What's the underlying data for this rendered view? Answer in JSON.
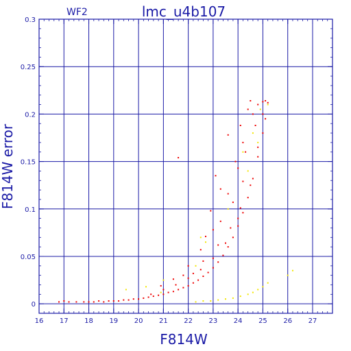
{
  "chart_data": {
    "type": "scatter",
    "title": "lmc_u4b107",
    "subtitle": "WF2",
    "xlabel": "F814W",
    "ylabel": "F814W error",
    "xlim": [
      16,
      27.8
    ],
    "ylim": [
      -0.01,
      0.3
    ],
    "x_ticks": [
      16,
      17,
      18,
      19,
      20,
      21,
      22,
      23,
      24,
      25,
      26,
      27
    ],
    "y_ticks": [
      0,
      0.05,
      0.1,
      0.15,
      0.2,
      0.25,
      0.3
    ],
    "y_tick_labels": [
      "0",
      "0.05",
      "0.1",
      "0.15",
      "0.2",
      "0.25",
      "0.3"
    ],
    "grid": true,
    "colors": {
      "axes": "#1a1aa6",
      "grid": "#1a1aa6",
      "series_main": "#ee0000",
      "series_secondary": "#f2e600"
    },
    "series": [
      {
        "color": "#ee0000",
        "points": [
          [
            16.8,
            0.002
          ],
          [
            17.0,
            0.003
          ],
          [
            17.2,
            0.002
          ],
          [
            17.5,
            0.002
          ],
          [
            17.8,
            0.002
          ],
          [
            18.0,
            0.002
          ],
          [
            18.2,
            0.002
          ],
          [
            18.4,
            0.003
          ],
          [
            18.6,
            0.002
          ],
          [
            18.8,
            0.003
          ],
          [
            19.0,
            0.003
          ],
          [
            19.2,
            0.003
          ],
          [
            19.4,
            0.004
          ],
          [
            19.6,
            0.004
          ],
          [
            19.8,
            0.005
          ],
          [
            20.0,
            0.005
          ],
          [
            20.2,
            0.006
          ],
          [
            20.4,
            0.007
          ],
          [
            20.6,
            0.008
          ],
          [
            20.8,
            0.009
          ],
          [
            21.0,
            0.01
          ],
          [
            21.2,
            0.012
          ],
          [
            21.4,
            0.013
          ],
          [
            21.6,
            0.015
          ],
          [
            21.8,
            0.017
          ],
          [
            22.0,
            0.019
          ],
          [
            22.2,
            0.022
          ],
          [
            22.4,
            0.025
          ],
          [
            22.6,
            0.029
          ],
          [
            22.8,
            0.033
          ],
          [
            23.0,
            0.038
          ],
          [
            23.2,
            0.044
          ],
          [
            23.4,
            0.051
          ],
          [
            23.6,
            0.06
          ],
          [
            23.8,
            0.07
          ],
          [
            24.0,
            0.082
          ],
          [
            24.2,
            0.096
          ],
          [
            24.4,
            0.112
          ],
          [
            24.6,
            0.132
          ],
          [
            24.8,
            0.155
          ],
          [
            25.0,
            0.18
          ],
          [
            25.1,
            0.195
          ],
          [
            25.2,
            0.212
          ],
          [
            20.5,
            0.01
          ],
          [
            21.0,
            0.015
          ],
          [
            21.5,
            0.02
          ],
          [
            22.0,
            0.027
          ],
          [
            22.5,
            0.036
          ],
          [
            23.0,
            0.048
          ],
          [
            23.5,
            0.064
          ],
          [
            24.0,
            0.09
          ],
          [
            24.5,
            0.125
          ],
          [
            24.8,
            0.165
          ],
          [
            25.0,
            0.2
          ],
          [
            25.1,
            0.214
          ],
          [
            21.6,
            0.154
          ],
          [
            22.2,
            0.032
          ],
          [
            23.1,
            0.135
          ],
          [
            23.3,
            0.121
          ],
          [
            23.6,
            0.178
          ],
          [
            23.9,
            0.15
          ],
          [
            24.1,
            0.188
          ],
          [
            24.4,
            0.205
          ],
          [
            24.2,
            0.17
          ],
          [
            24.5,
            0.214
          ],
          [
            22.9,
            0.098
          ],
          [
            23.6,
            0.116
          ],
          [
            24.0,
            0.143
          ],
          [
            24.3,
            0.16
          ],
          [
            22.5,
            0.057
          ],
          [
            23.0,
            0.078
          ],
          [
            22.7,
            0.071
          ],
          [
            24.6,
            0.2
          ],
          [
            24.8,
            0.21
          ],
          [
            25.0,
            0.213
          ],
          [
            23.3,
            0.087
          ],
          [
            23.8,
            0.107
          ],
          [
            24.2,
            0.129
          ],
          [
            24.7,
            0.188
          ],
          [
            22.0,
            0.04
          ],
          [
            21.4,
            0.026
          ],
          [
            20.9,
            0.019
          ],
          [
            21.8,
            0.03
          ],
          [
            22.6,
            0.045
          ],
          [
            23.2,
            0.062
          ],
          [
            23.7,
            0.08
          ],
          [
            24.1,
            0.101
          ]
        ]
      },
      {
        "color": "#f2e600",
        "points": [
          [
            19.5,
            0.015
          ],
          [
            20.3,
            0.018
          ],
          [
            21.0,
            0.025
          ],
          [
            20.9,
            0.012
          ],
          [
            22.3,
            0.04
          ],
          [
            22.7,
            0.065
          ],
          [
            22.5,
            0.07
          ],
          [
            23.6,
            0.1
          ],
          [
            24.2,
            0.16
          ],
          [
            24.6,
            0.18
          ],
          [
            24.9,
            0.205
          ],
          [
            25.2,
            0.21
          ],
          [
            24.4,
            0.14
          ],
          [
            24.8,
            0.17
          ],
          [
            22.3,
            0.002
          ],
          [
            22.6,
            0.003
          ],
          [
            22.9,
            0.003
          ],
          [
            23.2,
            0.004
          ],
          [
            23.5,
            0.005
          ],
          [
            23.8,
            0.006
          ],
          [
            24.1,
            0.008
          ],
          [
            24.4,
            0.01
          ],
          [
            24.6,
            0.012
          ],
          [
            24.8,
            0.015
          ],
          [
            25.0,
            0.018
          ],
          [
            25.2,
            0.022
          ],
          [
            26.0,
            0.03
          ],
          [
            26.2,
            0.035
          ]
        ]
      }
    ]
  }
}
